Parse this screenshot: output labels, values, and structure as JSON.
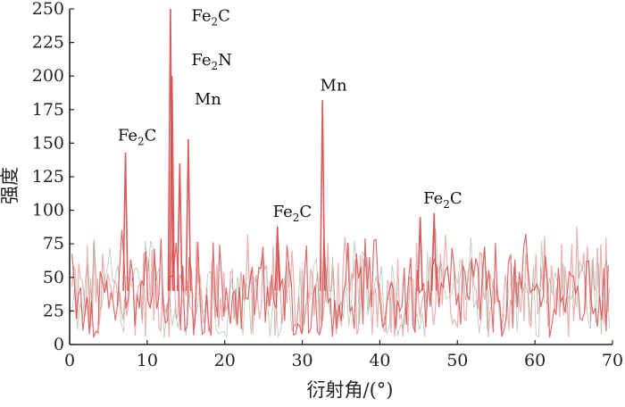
{
  "chart_data": {
    "type": "line",
    "xlabel": "衍射角/(°)",
    "ylabel": "强度",
    "xlim": [
      0,
      70
    ],
    "ylim": [
      0,
      250
    ],
    "x_ticks": [
      "0",
      "10",
      "20",
      "30",
      "40",
      "50",
      "60",
      "70"
    ],
    "y_ticks": [
      "0",
      "25",
      "50",
      "75",
      "100",
      "125",
      "150",
      "175",
      "200",
      "225",
      "250"
    ],
    "grid": false,
    "legend": "none",
    "peaks": [
      {
        "x": 7.2,
        "y": 143
      },
      {
        "x": 13.0,
        "y": 250
      },
      {
        "x": 13.2,
        "y": 200
      },
      {
        "x": 14.2,
        "y": 135
      },
      {
        "x": 15.3,
        "y": 153
      },
      {
        "x": 32.6,
        "y": 182
      },
      {
        "x": 26.8,
        "y": 88
      },
      {
        "x": 45.2,
        "y": 95
      },
      {
        "x": 47.0,
        "y": 98
      }
    ],
    "noise_range": [
      5,
      90
    ],
    "annotations": [
      {
        "label": "Fe",
        "sub": "2",
        "suffix": "C",
        "x": 6.2,
        "y": 152
      },
      {
        "label": "Fe",
        "sub": "2",
        "suffix": "C",
        "x": 15.7,
        "y": 241
      },
      {
        "label": "Fe",
        "sub": "2",
        "suffix": "N",
        "x": 15.7,
        "y": 208
      },
      {
        "label": "Mn",
        "sub": "",
        "suffix": "",
        "x": 16.1,
        "y": 179
      },
      {
        "label": "Mn",
        "sub": "",
        "suffix": "",
        "x": 32.3,
        "y": 189
      },
      {
        "label": "Fe",
        "sub": "2",
        "suffix": "C",
        "x": 26.2,
        "y": 95
      },
      {
        "label": "Fe",
        "sub": "2",
        "suffix": "C",
        "x": 45.6,
        "y": 105
      }
    ],
    "colors": {
      "series_a": "#d64a4a",
      "series_b": "#e9a7a7",
      "series_c": "#6f8f6f",
      "axis": "#222222"
    }
  }
}
